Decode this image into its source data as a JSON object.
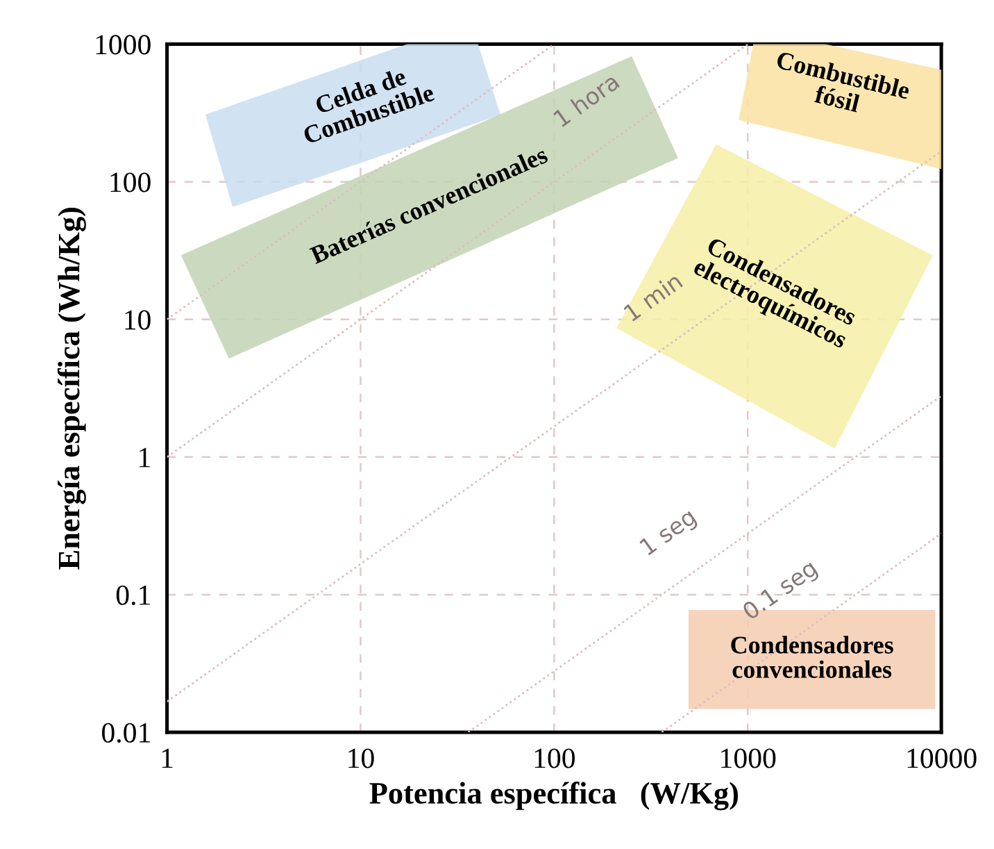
{
  "chart_data": {
    "type": "area",
    "xlabel": "Potencia específica   (W/Kg)",
    "ylabel": "Energía específica (Wh/Kg)",
    "log": "xy",
    "grid": true,
    "xlim": [
      1,
      10000
    ],
    "xticks": [
      1,
      10,
      100,
      1000,
      10000
    ],
    "ylim": [
      0.01,
      1000
    ],
    "yticks": [
      0.01,
      0.1,
      1,
      10,
      100,
      1000
    ],
    "series": [
      {
        "type": "line",
        "color": "#dcbcbc",
        "line_style": "dotted",
        "x": [
          1,
          100
        ],
        "values": [
          10,
          1000
        ]
      },
      {
        "type": "line",
        "color": "#dcbcbc",
        "line_style": "dotted",
        "x": [
          1,
          1000
        ],
        "values": [
          1,
          1000
        ]
      },
      {
        "type": "line",
        "color": "#dcbcbc",
        "line_style": "dotted",
        "x": [
          1,
          10000
        ],
        "values": [
          0.0167,
          167
        ]
      },
      {
        "type": "line",
        "color": "#dcbcbc",
        "line_style": "dotted",
        "x": [
          36,
          10000
        ],
        "values": [
          0.01,
          2.78
        ]
      },
      {
        "type": "line",
        "color": "#dcbcbc",
        "line_style": "dotted",
        "x": [
          360,
          10000
        ],
        "values": [
          0.01,
          0.278
        ]
      },
      {
        "name": "Celda de\nCombustible",
        "color": "#c9ddf0",
        "x": [
          1.6,
          18,
          40,
          52,
          2.2
        ],
        "values": [
          305,
          1000,
          1000,
          310,
          67
        ]
      },
      {
        "name": "Baterías convencionales",
        "color": "#c3d4b5",
        "x": [
          1.2,
          250,
          430,
          2.1
        ],
        "values": [
          29,
          800,
          150,
          5.3
        ]
      },
      {
        "name": "Combustible\nfósil",
        "color": "#fbe2a2",
        "x": [
          910,
          10000,
          10000,
          2400,
          1080
        ],
        "values": [
          285,
          126,
          640,
          1000,
          1000
        ]
      },
      {
        "name": "Condensadores\nelectroquímicos",
        "color": "#f6efa6",
        "x": [
          690,
          8900,
          2800,
          213
        ],
        "values": [
          183,
          29,
          1.18,
          8.7
        ]
      },
      {
        "name": "Condensadores\nconvencionales",
        "color": "#f5cdb0",
        "x": [
          500,
          9200,
          9200,
          500
        ],
        "values": [
          0.076,
          0.076,
          0.015,
          0.015
        ]
      }
    ],
    "annotations": [
      {
        "text": "1 hora",
        "x": 200,
        "y": 200
      },
      {
        "text": "1 min",
        "x": 442,
        "y": 7.4
      },
      {
        "text": "1 seg",
        "x": 527,
        "y": 0.146
      },
      {
        "text": "0.1 seg",
        "x": 2000,
        "y": 0.0556
      }
    ]
  }
}
